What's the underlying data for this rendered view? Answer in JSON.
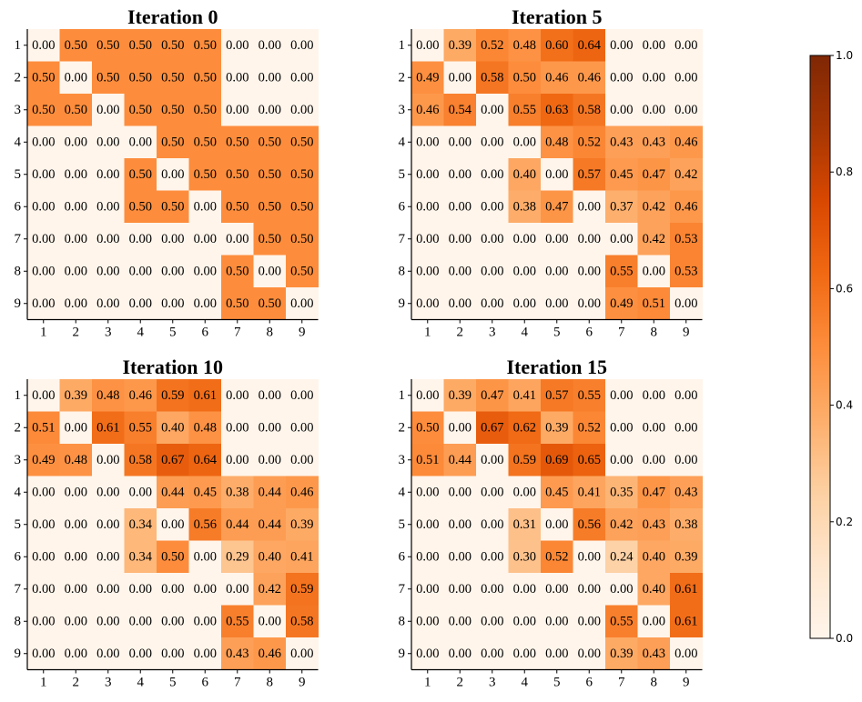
{
  "chart_data": [
    {
      "type": "heatmap",
      "title": "Iteration 0",
      "x_ticks": [
        "1",
        "2",
        "3",
        "4",
        "5",
        "6",
        "7",
        "8",
        "9"
      ],
      "y_ticks": [
        "1",
        "2",
        "3",
        "4",
        "5",
        "6",
        "7",
        "8",
        "9"
      ],
      "values": [
        [
          0.0,
          0.5,
          0.5,
          0.5,
          0.5,
          0.5,
          0.0,
          0.0,
          0.0
        ],
        [
          0.5,
          0.0,
          0.5,
          0.5,
          0.5,
          0.5,
          0.0,
          0.0,
          0.0
        ],
        [
          0.5,
          0.5,
          0.0,
          0.5,
          0.5,
          0.5,
          0.0,
          0.0,
          0.0
        ],
        [
          0.0,
          0.0,
          0.0,
          0.0,
          0.5,
          0.5,
          0.5,
          0.5,
          0.5
        ],
        [
          0.0,
          0.0,
          0.0,
          0.5,
          0.0,
          0.5,
          0.5,
          0.5,
          0.5
        ],
        [
          0.0,
          0.0,
          0.0,
          0.5,
          0.5,
          0.0,
          0.5,
          0.5,
          0.5
        ],
        [
          0.0,
          0.0,
          0.0,
          0.0,
          0.0,
          0.0,
          0.0,
          0.5,
          0.5
        ],
        [
          0.0,
          0.0,
          0.0,
          0.0,
          0.0,
          0.0,
          0.5,
          0.0,
          0.5
        ],
        [
          0.0,
          0.0,
          0.0,
          0.0,
          0.0,
          0.0,
          0.5,
          0.5,
          0.0
        ]
      ]
    },
    {
      "type": "heatmap",
      "title": "Iteration 5",
      "x_ticks": [
        "1",
        "2",
        "3",
        "4",
        "5",
        "6",
        "7",
        "8",
        "9"
      ],
      "y_ticks": [
        "1",
        "2",
        "3",
        "4",
        "5",
        "6",
        "7",
        "8",
        "9"
      ],
      "values": [
        [
          0.0,
          0.39,
          0.52,
          0.48,
          0.6,
          0.64,
          0.0,
          0.0,
          0.0
        ],
        [
          0.49,
          0.0,
          0.58,
          0.5,
          0.46,
          0.46,
          0.0,
          0.0,
          0.0
        ],
        [
          0.46,
          0.54,
          0.0,
          0.55,
          0.63,
          0.58,
          0.0,
          0.0,
          0.0
        ],
        [
          0.0,
          0.0,
          0.0,
          0.0,
          0.48,
          0.52,
          0.43,
          0.43,
          0.46
        ],
        [
          0.0,
          0.0,
          0.0,
          0.4,
          0.0,
          0.57,
          0.45,
          0.47,
          0.42
        ],
        [
          0.0,
          0.0,
          0.0,
          0.38,
          0.47,
          0.0,
          0.37,
          0.42,
          0.46
        ],
        [
          0.0,
          0.0,
          0.0,
          0.0,
          0.0,
          0.0,
          0.0,
          0.42,
          0.53
        ],
        [
          0.0,
          0.0,
          0.0,
          0.0,
          0.0,
          0.0,
          0.55,
          0.0,
          0.53
        ],
        [
          0.0,
          0.0,
          0.0,
          0.0,
          0.0,
          0.0,
          0.49,
          0.51,
          0.0
        ]
      ]
    },
    {
      "type": "heatmap",
      "title": "Iteration 10",
      "x_ticks": [
        "1",
        "2",
        "3",
        "4",
        "5",
        "6",
        "7",
        "8",
        "9"
      ],
      "y_ticks": [
        "1",
        "2",
        "3",
        "4",
        "5",
        "6",
        "7",
        "8",
        "9"
      ],
      "values": [
        [
          0.0,
          0.39,
          0.48,
          0.46,
          0.59,
          0.61,
          0.0,
          0.0,
          0.0
        ],
        [
          0.51,
          0.0,
          0.61,
          0.55,
          0.4,
          0.48,
          0.0,
          0.0,
          0.0
        ],
        [
          0.49,
          0.48,
          0.0,
          0.58,
          0.67,
          0.64,
          0.0,
          0.0,
          0.0
        ],
        [
          0.0,
          0.0,
          0.0,
          0.0,
          0.44,
          0.45,
          0.38,
          0.44,
          0.46
        ],
        [
          0.0,
          0.0,
          0.0,
          0.34,
          0.0,
          0.56,
          0.44,
          0.44,
          0.39
        ],
        [
          0.0,
          0.0,
          0.0,
          0.34,
          0.5,
          0.0,
          0.29,
          0.4,
          0.41
        ],
        [
          0.0,
          0.0,
          0.0,
          0.0,
          0.0,
          0.0,
          0.0,
          0.42,
          0.59
        ],
        [
          0.0,
          0.0,
          0.0,
          0.0,
          0.0,
          0.0,
          0.55,
          0.0,
          0.58
        ],
        [
          0.0,
          0.0,
          0.0,
          0.0,
          0.0,
          0.0,
          0.43,
          0.46,
          0.0
        ]
      ]
    },
    {
      "type": "heatmap",
      "title": "Iteration 15",
      "x_ticks": [
        "1",
        "2",
        "3",
        "4",
        "5",
        "6",
        "7",
        "8",
        "9"
      ],
      "y_ticks": [
        "1",
        "2",
        "3",
        "4",
        "5",
        "6",
        "7",
        "8",
        "9"
      ],
      "values": [
        [
          0.0,
          0.39,
          0.47,
          0.41,
          0.57,
          0.55,
          0.0,
          0.0,
          0.0
        ],
        [
          0.5,
          0.0,
          0.67,
          0.62,
          0.39,
          0.52,
          0.0,
          0.0,
          0.0
        ],
        [
          0.51,
          0.44,
          0.0,
          0.59,
          0.69,
          0.65,
          0.0,
          0.0,
          0.0
        ],
        [
          0.0,
          0.0,
          0.0,
          0.0,
          0.45,
          0.41,
          0.35,
          0.47,
          0.43
        ],
        [
          0.0,
          0.0,
          0.0,
          0.31,
          0.0,
          0.56,
          0.42,
          0.43,
          0.38
        ],
        [
          0.0,
          0.0,
          0.0,
          0.3,
          0.52,
          0.0,
          0.24,
          0.4,
          0.39
        ],
        [
          0.0,
          0.0,
          0.0,
          0.0,
          0.0,
          0.0,
          0.0,
          0.4,
          0.61
        ],
        [
          0.0,
          0.0,
          0.0,
          0.0,
          0.0,
          0.0,
          0.55,
          0.0,
          0.61
        ],
        [
          0.0,
          0.0,
          0.0,
          0.0,
          0.0,
          0.0,
          0.39,
          0.43,
          0.0
        ]
      ]
    }
  ],
  "colorbar": {
    "colormap": "Oranges",
    "range": [
      0.0,
      1.0
    ],
    "ticks": [
      {
        "value": 0.0,
        "label": "0.0"
      },
      {
        "value": 0.2,
        "label": "0.2"
      },
      {
        "value": 0.4,
        "label": "0.4"
      },
      {
        "value": 0.6,
        "label": "0.6"
      },
      {
        "value": 0.8,
        "label": "0.8"
      },
      {
        "value": 1.0,
        "label": "1.0"
      }
    ]
  },
  "colors": {
    "stops": [
      "#fff5eb",
      "#fee6ce",
      "#fdd0a2",
      "#fdae6b",
      "#fd8d3c",
      "#f16913",
      "#d94801",
      "#a63603",
      "#7f2704"
    ]
  }
}
